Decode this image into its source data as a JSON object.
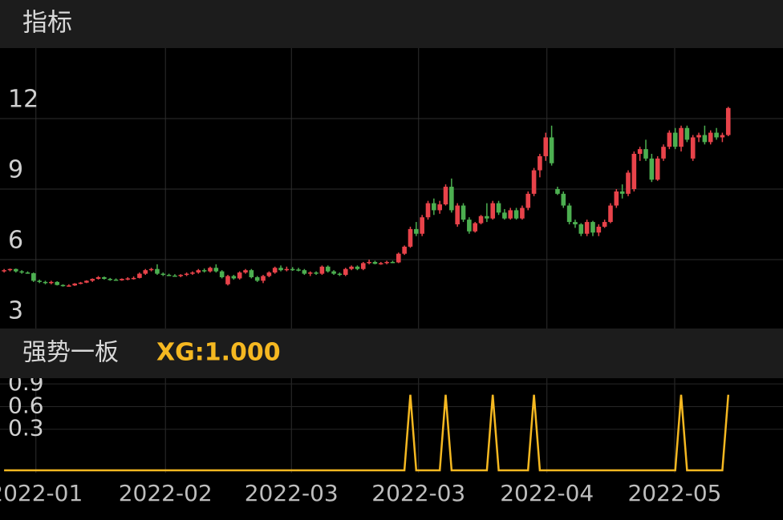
{
  "header": {
    "title": "指标"
  },
  "chart_data": [
    {
      "type": "candlestick",
      "xlim": [
        -0.7,
        132.3
      ],
      "ylim": [
        3,
        15
      ],
      "yticks": [
        3,
        6,
        9,
        12
      ],
      "grid": true,
      "up_color": "#e8434a",
      "down_color": "#4caf50",
      "candles": [
        [
          5.5,
          5.6,
          5.45,
          5.55
        ],
        [
          5.55,
          5.62,
          5.5,
          5.6
        ],
        [
          5.6,
          5.62,
          5.45,
          5.5
        ],
        [
          5.5,
          5.55,
          5.4,
          5.45
        ],
        [
          5.45,
          5.5,
          5.4,
          5.42
        ],
        [
          5.42,
          5.45,
          5.05,
          5.1
        ],
        [
          5.1,
          5.15,
          5.0,
          5.05
        ],
        [
          5.05,
          5.1,
          4.95,
          5.0
        ],
        [
          5.0,
          5.1,
          4.95,
          5.05
        ],
        [
          5.05,
          5.08,
          4.9,
          4.92
        ],
        [
          4.92,
          4.95,
          4.85,
          4.88
        ],
        [
          4.88,
          4.95,
          4.85,
          4.9
        ],
        [
          4.9,
          5.0,
          4.88,
          4.98
        ],
        [
          4.98,
          5.05,
          4.95,
          5.02
        ],
        [
          5.02,
          5.12,
          5.0,
          5.1
        ],
        [
          5.1,
          5.2,
          5.05,
          5.18
        ],
        [
          5.18,
          5.3,
          5.15,
          5.25
        ],
        [
          5.25,
          5.28,
          5.15,
          5.18
        ],
        [
          5.18,
          5.22,
          5.1,
          5.15
        ],
        [
          5.15,
          5.2,
          5.1,
          5.12
        ],
        [
          5.12,
          5.2,
          5.1,
          5.18
        ],
        [
          5.18,
          5.25,
          5.12,
          5.2
        ],
        [
          5.2,
          5.28,
          5.15,
          5.22
        ],
        [
          5.22,
          5.45,
          5.2,
          5.4
        ],
        [
          5.4,
          5.6,
          5.35,
          5.55
        ],
        [
          5.55,
          5.65,
          5.5,
          5.6
        ],
        [
          5.6,
          5.8,
          5.35,
          5.4
        ],
        [
          5.4,
          5.45,
          5.3,
          5.35
        ],
        [
          5.35,
          5.4,
          5.3,
          5.32
        ],
        [
          5.32,
          5.38,
          5.28,
          5.3
        ],
        [
          5.3,
          5.38,
          5.25,
          5.35
        ],
        [
          5.35,
          5.45,
          5.3,
          5.4
        ],
        [
          5.4,
          5.5,
          5.35,
          5.45
        ],
        [
          5.45,
          5.6,
          5.4,
          5.55
        ],
        [
          5.55,
          5.62,
          5.45,
          5.5
        ],
        [
          5.5,
          5.7,
          5.45,
          5.65
        ],
        [
          5.65,
          5.8,
          5.45,
          5.5
        ],
        [
          5.5,
          5.55,
          5.2,
          5.25
        ],
        [
          4.95,
          5.35,
          4.9,
          5.3
        ],
        [
          5.3,
          5.35,
          5.15,
          5.2
        ],
        [
          5.2,
          5.5,
          5.15,
          5.45
        ],
        [
          5.45,
          5.6,
          5.4,
          5.55
        ],
        [
          5.55,
          5.6,
          5.2,
          5.25
        ],
        [
          5.25,
          5.3,
          5.05,
          5.1
        ],
        [
          5.1,
          5.35,
          5.0,
          5.3
        ],
        [
          5.3,
          5.5,
          5.25,
          5.45
        ],
        [
          5.45,
          5.7,
          5.4,
          5.65
        ],
        [
          5.65,
          5.75,
          5.5,
          5.55
        ],
        [
          5.55,
          5.7,
          5.5,
          5.6
        ],
        [
          5.6,
          5.68,
          5.52,
          5.58
        ],
        [
          5.58,
          5.65,
          5.5,
          5.55
        ],
        [
          5.55,
          5.6,
          5.35,
          5.4
        ],
        [
          5.4,
          5.5,
          5.3,
          5.45
        ],
        [
          5.45,
          5.5,
          5.35,
          5.4
        ],
        [
          5.4,
          5.75,
          5.35,
          5.7
        ],
        [
          5.7,
          5.75,
          5.45,
          5.5
        ],
        [
          5.5,
          5.55,
          5.35,
          5.4
        ],
        [
          5.4,
          5.45,
          5.3,
          5.35
        ],
        [
          5.35,
          5.65,
          5.3,
          5.6
        ],
        [
          5.6,
          5.75,
          5.55,
          5.7
        ],
        [
          5.7,
          5.75,
          5.55,
          5.6
        ],
        [
          5.6,
          5.9,
          5.55,
          5.85
        ],
        [
          5.85,
          6.0,
          5.8,
          5.9
        ],
        [
          5.9,
          5.95,
          5.8,
          5.82
        ],
        [
          5.82,
          5.9,
          5.78,
          5.85
        ],
        [
          5.85,
          5.95,
          5.8,
          5.9
        ],
        [
          5.9,
          5.95,
          5.85,
          5.88
        ],
        [
          5.88,
          6.3,
          5.85,
          6.25
        ],
        [
          6.25,
          6.6,
          6.2,
          6.55
        ],
        [
          6.55,
          7.4,
          6.5,
          7.3
        ],
        [
          7.3,
          7.6,
          7.0,
          7.1
        ],
        [
          7.1,
          7.9,
          7.0,
          7.8
        ],
        [
          7.8,
          8.5,
          7.7,
          8.4
        ],
        [
          8.4,
          8.6,
          7.9,
          8.1
        ],
        [
          8.1,
          8.5,
          7.95,
          8.35
        ],
        [
          8.35,
          9.2,
          8.3,
          9.1
        ],
        [
          9.1,
          9.45,
          8.0,
          8.1
        ],
        [
          7.5,
          8.4,
          7.4,
          8.3
        ],
        [
          8.3,
          8.4,
          7.6,
          7.7
        ],
        [
          7.7,
          7.8,
          7.1,
          7.2
        ],
        [
          7.2,
          7.6,
          7.15,
          7.55
        ],
        [
          7.55,
          7.9,
          7.5,
          7.85
        ],
        [
          7.85,
          8.4,
          7.6,
          7.75
        ],
        [
          7.75,
          8.5,
          7.7,
          8.4
        ],
        [
          8.4,
          8.5,
          7.9,
          8.0
        ],
        [
          8.0,
          8.15,
          7.7,
          7.75
        ],
        [
          7.75,
          8.2,
          7.7,
          8.1
        ],
        [
          8.1,
          8.2,
          7.7,
          7.75
        ],
        [
          7.75,
          8.3,
          7.7,
          8.2
        ],
        [
          8.2,
          8.9,
          8.1,
          8.8
        ],
        [
          8.8,
          9.9,
          8.7,
          9.8
        ],
        [
          9.8,
          10.5,
          9.5,
          10.4
        ],
        [
          10.4,
          11.4,
          10.2,
          11.2
        ],
        [
          11.2,
          11.7,
          10.0,
          10.1
        ],
        [
          9.0,
          9.1,
          8.75,
          8.8
        ],
        [
          8.8,
          8.9,
          8.2,
          8.3
        ],
        [
          8.3,
          8.4,
          7.5,
          7.6
        ],
        [
          7.6,
          7.7,
          7.35,
          7.5
        ],
        [
          7.5,
          7.55,
          7.0,
          7.1
        ],
        [
          7.1,
          7.7,
          7.0,
          7.6
        ],
        [
          7.6,
          7.65,
          7.0,
          7.15
        ],
        [
          7.15,
          7.5,
          7.0,
          7.4
        ],
        [
          7.4,
          7.7,
          7.35,
          7.6
        ],
        [
          7.6,
          8.4,
          7.55,
          8.3
        ],
        [
          8.3,
          9.0,
          8.2,
          8.9
        ],
        [
          8.9,
          9.2,
          8.6,
          8.8
        ],
        [
          8.8,
          9.8,
          8.7,
          9.7
        ],
        [
          9.0,
          10.6,
          8.9,
          10.5
        ],
        [
          10.5,
          10.8,
          10.2,
          10.7
        ],
        [
          10.7,
          11.1,
          10.2,
          10.3
        ],
        [
          10.3,
          10.5,
          9.3,
          9.4
        ],
        [
          9.4,
          10.4,
          9.35,
          10.3
        ],
        [
          10.3,
          10.9,
          10.2,
          10.8
        ],
        [
          10.8,
          11.5,
          10.7,
          11.4
        ],
        [
          11.4,
          11.6,
          10.7,
          10.8
        ],
        [
          10.8,
          11.7,
          10.6,
          11.6
        ],
        [
          11.6,
          11.7,
          11.0,
          11.1
        ],
        [
          10.3,
          11.3,
          10.2,
          11.2
        ],
        [
          11.2,
          11.4,
          11.0,
          11.3
        ],
        [
          11.3,
          11.7,
          10.9,
          11.0
        ],
        [
          11.0,
          11.5,
          10.9,
          11.4
        ],
        [
          11.4,
          11.6,
          11.1,
          11.2
        ],
        [
          11.2,
          11.4,
          11.0,
          11.3
        ],
        [
          11.3,
          12.5,
          11.25,
          12.45
        ]
      ]
    },
    {
      "type": "line",
      "title": "强势一板",
      "subtitle": "XG:1.000",
      "xlim": [
        -0.7,
        132.3
      ],
      "ylim": [
        0,
        1.22
      ],
      "yticks": [
        0.3,
        0.6,
        0.9
      ],
      "xticks": [
        {
          "value": 5.4,
          "label": "2022-01"
        },
        {
          "value": 27.4,
          "label": "2022-02"
        },
        {
          "value": 48.8,
          "label": "2022-03"
        },
        {
          "value": 70.4,
          "label": "2022-03"
        },
        {
          "value": 92.2,
          "label": "2022-04"
        },
        {
          "value": 113.9,
          "label": "2022-05"
        }
      ],
      "grid": true,
      "series": [
        {
          "name": "XG",
          "color": "#f5b821",
          "values": [
            0,
            0,
            0,
            0,
            0,
            0,
            0,
            0,
            0,
            0,
            0,
            0,
            0,
            0,
            0,
            0,
            0,
            0,
            0,
            0,
            0,
            0,
            0,
            0,
            0,
            0,
            0,
            0,
            0,
            0,
            0,
            0,
            0,
            0,
            0,
            0,
            0,
            0,
            0,
            0,
            0,
            0,
            0,
            0,
            0,
            0,
            0,
            0,
            0,
            0,
            0,
            0,
            0,
            0,
            0,
            0,
            0,
            0,
            0,
            0,
            0,
            0,
            0,
            0,
            0,
            0,
            0,
            0,
            0,
            1,
            0,
            0,
            0,
            0,
            0,
            1,
            0,
            0,
            0,
            0,
            0,
            0,
            0,
            1,
            0,
            0,
            0,
            0,
            0,
            0,
            1,
            0,
            0,
            0,
            0,
            0,
            0,
            0,
            0,
            0,
            0,
            0,
            0,
            0,
            0,
            0,
            0,
            0,
            0,
            0,
            0,
            0,
            0,
            0,
            0,
            1,
            0,
            0,
            0,
            0,
            0,
            0,
            0,
            1
          ]
        }
      ]
    }
  ]
}
